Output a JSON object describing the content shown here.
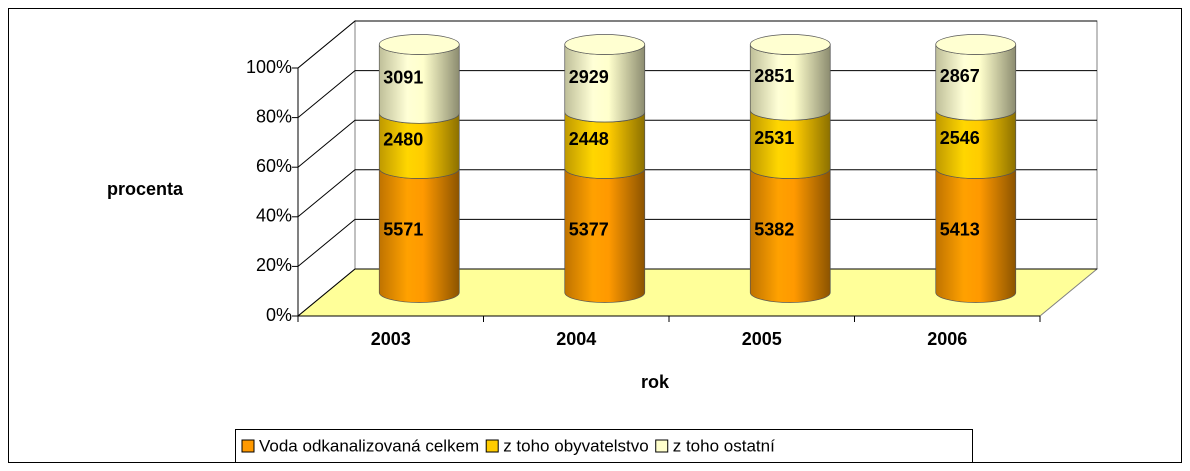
{
  "chart_data": {
    "type": "bar",
    "stacking": "percent",
    "shape": "cylinder",
    "y_label": "procenta",
    "x_label": "rok",
    "categories": [
      "2003",
      "2004",
      "2005",
      "2006"
    ],
    "series": [
      {
        "name": "Voda odkanalizovaná celkem",
        "color": "#ff9900",
        "values": [
          5571,
          5377,
          5382,
          5413
        ]
      },
      {
        "name": "z toho obyvatelstvo",
        "color": "#ffcc00",
        "values": [
          2480,
          2448,
          2531,
          2546
        ]
      },
      {
        "name": "z toho ostatní",
        "color": "#ffffcc",
        "values": [
          3091,
          2929,
          2851,
          2867
        ]
      }
    ],
    "ylim": [
      0,
      100
    ],
    "yticks": [
      {
        "value": 0,
        "label": "0%"
      },
      {
        "value": 20,
        "label": "20%"
      },
      {
        "value": 40,
        "label": "40%"
      },
      {
        "value": 60,
        "label": "60%"
      },
      {
        "value": 80,
        "label": "80%"
      },
      {
        "value": 100,
        "label": "100%"
      }
    ],
    "grid": true,
    "floor_color": "#ffff99",
    "legend": "bottom"
  }
}
